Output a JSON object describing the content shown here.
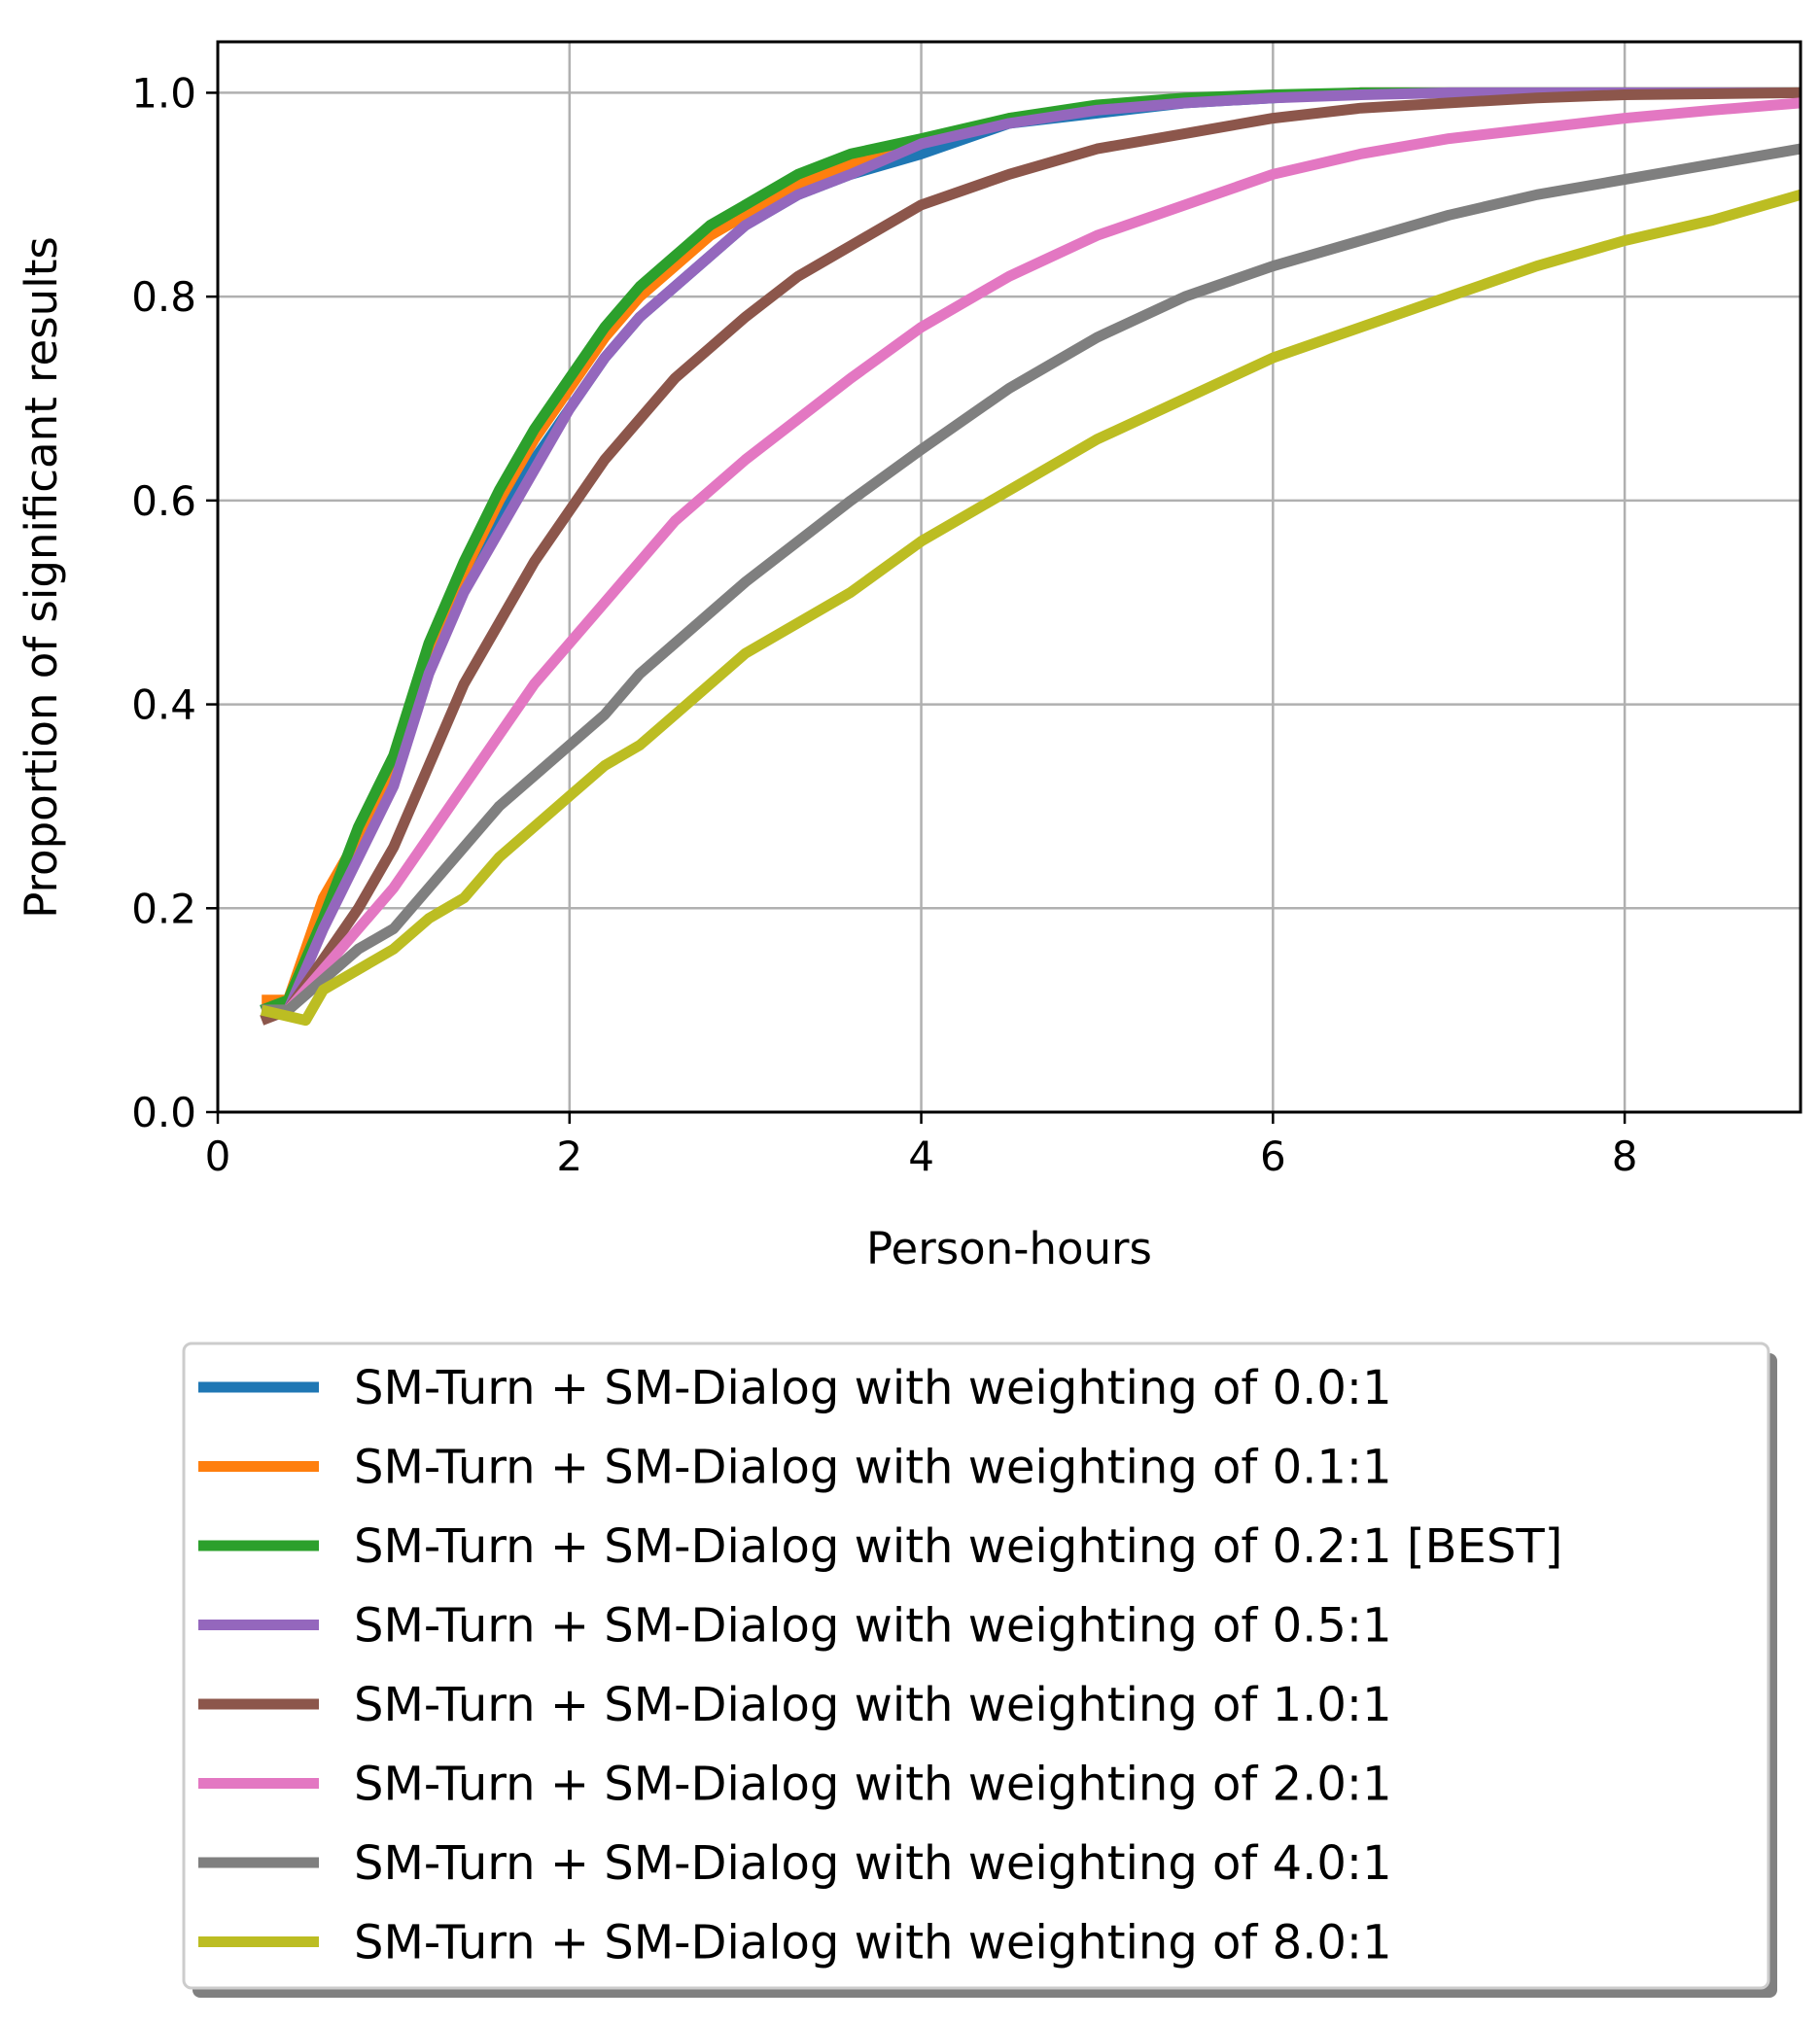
{
  "chart_data": {
    "type": "line",
    "title": "",
    "xlabel": "Person-hours",
    "ylabel": "Proportion of significant results",
    "xlim": [
      0,
      9
    ],
    "ylim": [
      0,
      1.05
    ],
    "xticks": [
      0,
      2,
      4,
      6,
      8
    ],
    "xtick_labels": [
      "0",
      "2",
      "4",
      "6",
      "8"
    ],
    "yticks": [
      0.0,
      0.2,
      0.4,
      0.6,
      0.8,
      1.0
    ],
    "ytick_labels": [
      "0.0",
      "0.2",
      "0.4",
      "0.6",
      "0.8",
      "1.0"
    ],
    "grid": true,
    "legend_position": "below plot, centered",
    "series": [
      {
        "name": "SM-Turn + SM-Dialog with weighting of 0.0:1",
        "color": "#1f77b4",
        "x": [
          0.25,
          0.4,
          0.6,
          0.8,
          1.0,
          1.2,
          1.4,
          1.6,
          1.8,
          2.0,
          2.2,
          2.4,
          2.6,
          2.8,
          3.0,
          3.3,
          3.6,
          4.0,
          4.5,
          5.0,
          5.5,
          6.0,
          6.5,
          7.0,
          8.0,
          9.0
        ],
        "y": [
          0.1,
          0.11,
          0.2,
          0.26,
          0.34,
          0.44,
          0.52,
          0.58,
          0.64,
          0.69,
          0.74,
          0.78,
          0.81,
          0.84,
          0.87,
          0.9,
          0.92,
          0.94,
          0.97,
          0.98,
          0.99,
          0.995,
          1.0,
          1.0,
          1.0,
          1.0
        ]
      },
      {
        "name": "SM-Turn + SM-Dialog with weighting of 0.1:1",
        "color": "#ff7f0e",
        "x": [
          0.25,
          0.4,
          0.6,
          0.8,
          1.0,
          1.2,
          1.4,
          1.6,
          1.8,
          2.0,
          2.2,
          2.4,
          2.6,
          2.8,
          3.0,
          3.3,
          3.6,
          4.0,
          4.5,
          5.0,
          5.5,
          6.0,
          6.5,
          7.0,
          8.0,
          9.0
        ],
        "y": [
          0.11,
          0.11,
          0.21,
          0.27,
          0.34,
          0.45,
          0.53,
          0.6,
          0.66,
          0.71,
          0.76,
          0.8,
          0.83,
          0.86,
          0.88,
          0.91,
          0.93,
          0.95,
          0.975,
          0.985,
          0.993,
          0.997,
          1.0,
          1.0,
          1.0,
          1.0
        ]
      },
      {
        "name": "SM-Turn + SM-Dialog with weighting of 0.2:1 [BEST]",
        "color": "#2ca02c",
        "x": [
          0.25,
          0.4,
          0.6,
          0.8,
          1.0,
          1.2,
          1.4,
          1.6,
          1.8,
          2.0,
          2.2,
          2.4,
          2.6,
          2.8,
          3.0,
          3.3,
          3.6,
          4.0,
          4.5,
          5.0,
          5.5,
          6.0,
          6.5,
          7.0,
          8.0,
          9.0
        ],
        "y": [
          0.1,
          0.11,
          0.19,
          0.28,
          0.35,
          0.46,
          0.54,
          0.61,
          0.67,
          0.72,
          0.77,
          0.81,
          0.84,
          0.87,
          0.89,
          0.92,
          0.94,
          0.955,
          0.975,
          0.988,
          0.995,
          0.998,
          1.0,
          1.0,
          1.0,
          1.0
        ]
      },
      {
        "name": "SM-Turn + SM-Dialog with weighting of 0.5:1",
        "color": "#9467bd",
        "x": [
          0.25,
          0.4,
          0.6,
          0.8,
          1.0,
          1.2,
          1.4,
          1.6,
          1.8,
          2.0,
          2.2,
          2.4,
          2.6,
          2.8,
          3.0,
          3.3,
          3.6,
          4.0,
          4.5,
          5.0,
          5.5,
          6.0,
          6.5,
          7.0,
          8.0,
          9.0
        ],
        "y": [
          0.1,
          0.1,
          0.18,
          0.25,
          0.32,
          0.43,
          0.51,
          0.57,
          0.63,
          0.69,
          0.74,
          0.78,
          0.81,
          0.84,
          0.87,
          0.9,
          0.92,
          0.95,
          0.97,
          0.983,
          0.99,
          0.995,
          0.998,
          1.0,
          1.0,
          1.0
        ]
      },
      {
        "name": "SM-Turn + SM-Dialog with weighting of 1.0:1",
        "color": "#8c564b",
        "x": [
          0.25,
          0.4,
          0.6,
          0.8,
          1.0,
          1.2,
          1.4,
          1.6,
          1.8,
          2.0,
          2.2,
          2.4,
          2.6,
          2.8,
          3.0,
          3.3,
          3.6,
          4.0,
          4.5,
          5.0,
          5.5,
          6.0,
          6.5,
          7.0,
          7.5,
          8.0,
          9.0
        ],
        "y": [
          0.09,
          0.1,
          0.15,
          0.2,
          0.26,
          0.34,
          0.42,
          0.48,
          0.54,
          0.59,
          0.64,
          0.68,
          0.72,
          0.75,
          0.78,
          0.82,
          0.85,
          0.89,
          0.92,
          0.945,
          0.96,
          0.975,
          0.985,
          0.99,
          0.995,
          0.998,
          1.0
        ]
      },
      {
        "name": "SM-Turn + SM-Dialog with weighting of 2.0:1",
        "color": "#e377c2",
        "x": [
          0.25,
          0.4,
          0.6,
          0.8,
          1.0,
          1.2,
          1.4,
          1.6,
          1.8,
          2.0,
          2.2,
          2.4,
          2.6,
          2.8,
          3.0,
          3.3,
          3.6,
          4.0,
          4.5,
          5.0,
          5.5,
          6.0,
          6.5,
          7.0,
          7.5,
          8.0,
          8.5,
          9.0
        ],
        "y": [
          0.1,
          0.1,
          0.14,
          0.18,
          0.22,
          0.27,
          0.32,
          0.37,
          0.42,
          0.46,
          0.5,
          0.54,
          0.58,
          0.61,
          0.64,
          0.68,
          0.72,
          0.77,
          0.82,
          0.86,
          0.89,
          0.92,
          0.94,
          0.955,
          0.965,
          0.975,
          0.983,
          0.99
        ]
      },
      {
        "name": "SM-Turn + SM-Dialog with weighting of 4.0:1",
        "color": "#7f7f7f",
        "x": [
          0.25,
          0.4,
          0.6,
          0.8,
          1.0,
          1.2,
          1.4,
          1.6,
          1.8,
          2.0,
          2.2,
          2.4,
          2.6,
          2.8,
          3.0,
          3.3,
          3.6,
          4.0,
          4.5,
          5.0,
          5.5,
          6.0,
          6.5,
          7.0,
          7.5,
          8.0,
          8.5,
          9.0
        ],
        "y": [
          0.1,
          0.1,
          0.13,
          0.16,
          0.18,
          0.22,
          0.26,
          0.3,
          0.33,
          0.36,
          0.39,
          0.43,
          0.46,
          0.49,
          0.52,
          0.56,
          0.6,
          0.65,
          0.71,
          0.76,
          0.8,
          0.83,
          0.855,
          0.88,
          0.9,
          0.915,
          0.93,
          0.945
        ]
      },
      {
        "name": "SM-Turn + SM-Dialog with weighting of 8.0:1",
        "color": "#bcbd22",
        "x": [
          0.25,
          0.5,
          0.6,
          0.8,
          1.0,
          1.2,
          1.4,
          1.6,
          1.8,
          2.0,
          2.2,
          2.4,
          2.6,
          2.8,
          3.0,
          3.3,
          3.6,
          4.0,
          4.5,
          5.0,
          5.5,
          6.0,
          6.5,
          7.0,
          7.5,
          8.0,
          8.5,
          9.0
        ],
        "y": [
          0.1,
          0.09,
          0.12,
          0.14,
          0.16,
          0.19,
          0.21,
          0.25,
          0.28,
          0.31,
          0.34,
          0.36,
          0.39,
          0.42,
          0.45,
          0.48,
          0.51,
          0.56,
          0.61,
          0.66,
          0.7,
          0.74,
          0.77,
          0.8,
          0.83,
          0.855,
          0.875,
          0.9
        ]
      }
    ]
  }
}
